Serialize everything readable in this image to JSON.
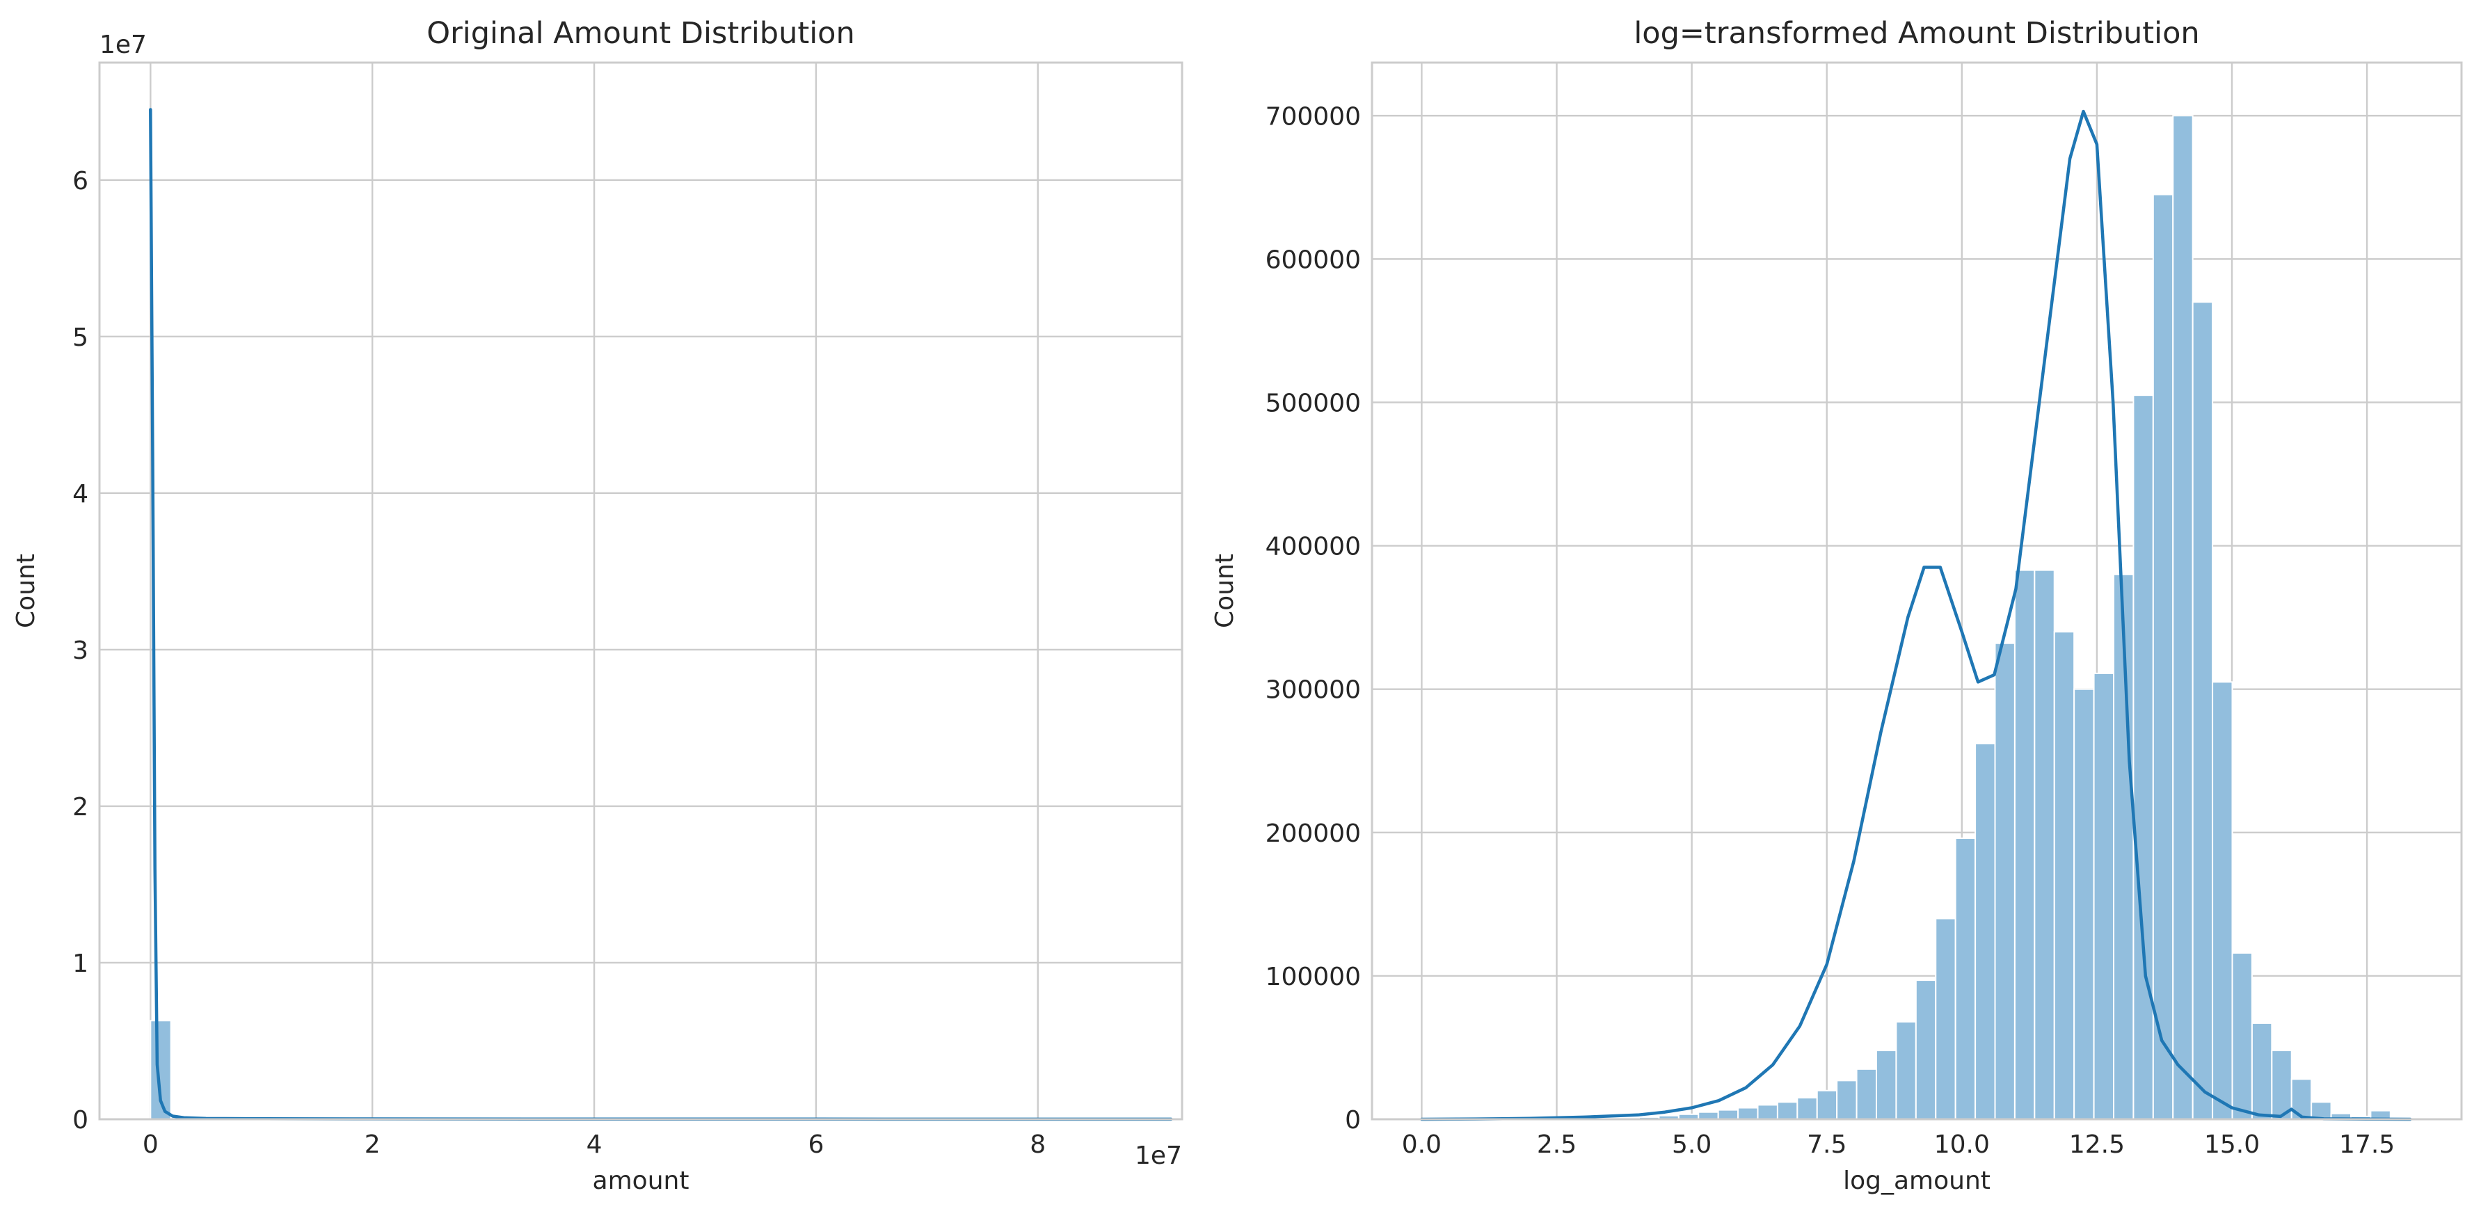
{
  "colors": {
    "bar": "#92bedd",
    "line": "#1f77b4"
  },
  "chart_data": [
    {
      "type": "bar",
      "title": "Original Amount Distribution",
      "xlabel": "amount",
      "ylabel": "Count",
      "x_offset_label": "1e7",
      "y_offset_label": "1e7",
      "xlim": [
        -0.46,
        9.3
      ],
      "ylim": [
        0,
        6.75
      ],
      "xticks": [
        0,
        2,
        4,
        6,
        8
      ],
      "xtick_labels": [
        "0",
        "2",
        "4",
        "6",
        "8"
      ],
      "yticks": [
        0,
        1,
        2,
        3,
        4,
        5,
        6
      ],
      "ytick_labels": [
        "0",
        "1",
        "2",
        "3",
        "4",
        "5",
        "6"
      ],
      "grid": true,
      "bins": {
        "start": 0,
        "width": 0.184,
        "counts": [
          0.63,
          0.012,
          0.004,
          0.002,
          0.001,
          0.001,
          0.0005,
          0.0005,
          0.0003,
          0.0003
        ]
      },
      "kde": {
        "x": [
          0.0,
          0.02,
          0.04,
          0.06,
          0.09,
          0.13,
          0.2,
          0.3,
          0.5,
          1.0,
          2.0,
          4.0,
          6.0,
          8.0,
          9.2
        ],
        "y": [
          6.45,
          4.2,
          1.6,
          0.35,
          0.12,
          0.05,
          0.02,
          0.01,
          0.005,
          0.003,
          0.002,
          0.001,
          0.001,
          0.0005,
          0.0005
        ]
      }
    },
    {
      "type": "bar",
      "title": "log=transformed Amount Distribution",
      "xlabel": "log_amount",
      "ylabel": "Count",
      "xlim": [
        -0.92,
        19.25
      ],
      "ylim": [
        0,
        737000
      ],
      "xticks": [
        0,
        2.5,
        5,
        7.5,
        10,
        12.5,
        15,
        17.5
      ],
      "xtick_labels": [
        "0.0",
        "2.5",
        "5.0",
        "7.5",
        "10.0",
        "12.5",
        "15.0",
        "17.5"
      ],
      "yticks": [
        0,
        100000,
        200000,
        300000,
        400000,
        500000,
        600000,
        700000
      ],
      "ytick_labels": [
        "0",
        "100000",
        "200000",
        "300000",
        "400000",
        "500000",
        "600000",
        "700000"
      ],
      "grid": true,
      "bins": {
        "start": 0,
        "width": 0.366,
        "counts": [
          0,
          0,
          0,
          0,
          0,
          0,
          0,
          0,
          0,
          0,
          500,
          1500,
          2500,
          3500,
          5000,
          6500,
          8000,
          10000,
          12000,
          15000,
          20000,
          27000,
          35000,
          48000,
          68000,
          97000,
          140000,
          196000,
          262000,
          332000,
          383000,
          383000,
          340000,
          300000,
          311000,
          380000,
          505000,
          645000,
          700000,
          570000,
          305000,
          116000,
          67000,
          48000,
          28000,
          12000,
          4000,
          2000,
          6000,
          0,
          0
        ]
      },
      "kde": {
        "x": [
          0,
          1,
          2,
          3,
          4,
          4.5,
          5,
          5.5,
          6,
          6.5,
          7,
          7.5,
          8,
          8.5,
          9,
          9.3,
          9.6,
          10,
          10.3,
          10.6,
          11,
          11.5,
          12,
          12.25,
          12.5,
          12.8,
          13.1,
          13.4,
          13.7,
          14,
          14.5,
          15,
          15.5,
          15.9,
          16.1,
          16.3,
          16.7,
          17.5,
          18.3
        ],
        "y": [
          0,
          200,
          600,
          1500,
          3000,
          5000,
          8000,
          13000,
          22000,
          38000,
          65000,
          108000,
          180000,
          270000,
          350000,
          385000,
          385000,
          340000,
          305000,
          310000,
          370000,
          520000,
          670000,
          703000,
          680000,
          500000,
          250000,
          100000,
          55000,
          38000,
          19000,
          8000,
          3000,
          2000,
          7000,
          1500,
          300,
          100,
          0
        ]
      }
    }
  ]
}
